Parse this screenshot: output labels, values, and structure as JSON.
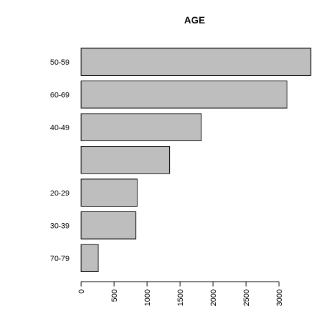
{
  "chart_data": {
    "type": "bar",
    "orientation": "horizontal",
    "title": "AGE",
    "categories": [
      "50-59",
      "60-69",
      "40-49",
      "",
      "20-29",
      "30-39",
      "70-79"
    ],
    "values": [
      3480,
      3120,
      1820,
      1340,
      850,
      830,
      260
    ],
    "xlim": [
      0,
      3480
    ],
    "x_ticks": [
      0,
      500,
      1000,
      1500,
      2000,
      2500,
      3000
    ],
    "grid": false,
    "legend": "none",
    "bar_color": "#bebebe",
    "bar_stroke": "#000000"
  }
}
